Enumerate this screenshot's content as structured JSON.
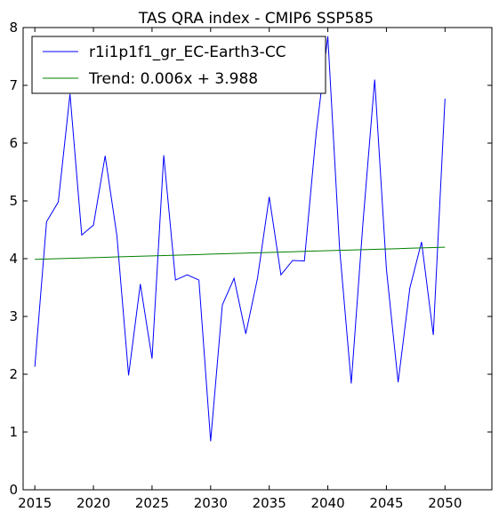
{
  "chart_data": {
    "type": "line",
    "title": "TAS QRA index - CMIP6 SSP585",
    "xlabel": "",
    "ylabel": "",
    "xlim": [
      2014,
      2054
    ],
    "ylim": [
      0,
      8
    ],
    "x_ticks": [
      2015,
      2020,
      2025,
      2030,
      2035,
      2040,
      2045,
      2050
    ],
    "y_ticks": [
      0,
      1,
      2,
      3,
      4,
      5,
      6,
      7,
      8
    ],
    "grid": false,
    "legend_position": "top-left",
    "x": [
      2015,
      2016,
      2017,
      2018,
      2019,
      2020,
      2021,
      2022,
      2023,
      2024,
      2025,
      2026,
      2027,
      2028,
      2029,
      2030,
      2031,
      2032,
      2033,
      2034,
      2035,
      2036,
      2037,
      2038,
      2039,
      2040,
      2041,
      2042,
      2043,
      2044,
      2045,
      2046,
      2047,
      2048,
      2049,
      2050
    ],
    "series": [
      {
        "name": "r1i1p1f1_gr_EC-Earth3-CC",
        "color": "#0000ff",
        "values": [
          2.13,
          4.64,
          4.98,
          6.85,
          4.41,
          4.58,
          5.78,
          4.4,
          1.98,
          3.56,
          2.27,
          5.79,
          3.63,
          3.72,
          3.63,
          0.84,
          3.2,
          3.66,
          2.7,
          3.66,
          5.07,
          3.72,
          3.97,
          3.96,
          6.16,
          7.85,
          4.19,
          1.84,
          4.62,
          7.1,
          3.82,
          1.86,
          3.49,
          4.29,
          2.68,
          6.77
        ]
      },
      {
        "name": "Trend: 0.006x + 3.988",
        "color": "#008000",
        "values": [
          3.988,
          3.994,
          4.0,
          4.006,
          4.012,
          4.018,
          4.024,
          4.03,
          4.036,
          4.042,
          4.048,
          4.054,
          4.06,
          4.066,
          4.072,
          4.078,
          4.084,
          4.09,
          4.096,
          4.102,
          4.108,
          4.114,
          4.12,
          4.126,
          4.132,
          4.138,
          4.144,
          4.15,
          4.156,
          4.162,
          4.168,
          4.174,
          4.18,
          4.186,
          4.192,
          4.198
        ]
      }
    ]
  }
}
